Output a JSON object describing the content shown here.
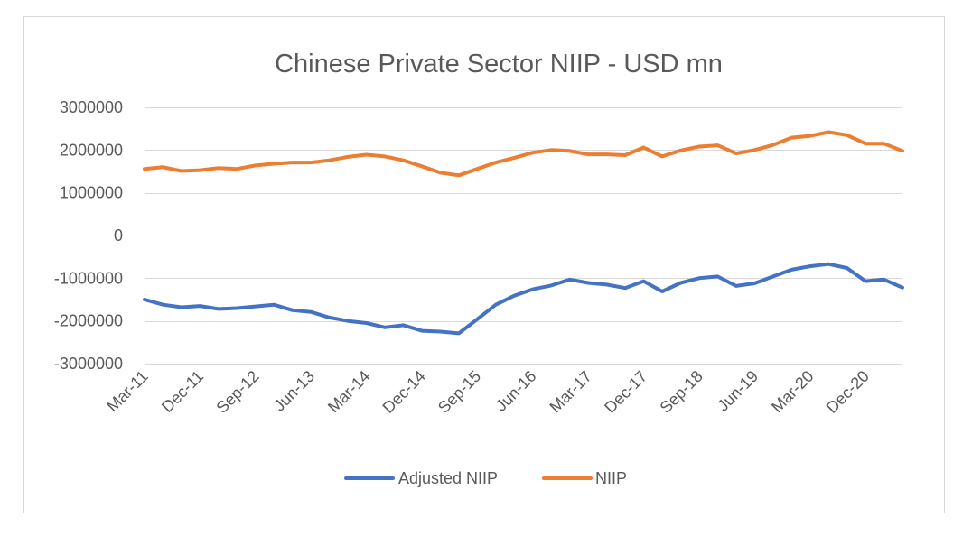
{
  "chart_data": {
    "type": "line",
    "title": "Chinese Private Sector NIIP - USD mn",
    "xlabel": "",
    "ylabel": "",
    "ylim": [
      -3000000,
      3000000
    ],
    "yticks": [
      3000000,
      2000000,
      1000000,
      0,
      -1000000,
      -2000000,
      -3000000
    ],
    "ytick_labels": [
      "3000000",
      "2000000",
      "1000000",
      "0",
      "-1000000",
      "-2000000",
      "-3000000"
    ],
    "grid": true,
    "legend_position": "bottom",
    "x": [
      "Mar-11",
      "Jun-11",
      "Sep-11",
      "Dec-11",
      "Mar-12",
      "Jun-12",
      "Sep-12",
      "Dec-12",
      "Mar-13",
      "Jun-13",
      "Sep-13",
      "Dec-13",
      "Mar-14",
      "Jun-14",
      "Sep-14",
      "Dec-14",
      "Mar-15",
      "Jun-15",
      "Sep-15",
      "Dec-15",
      "Mar-16",
      "Jun-16",
      "Sep-16",
      "Dec-16",
      "Mar-17",
      "Jun-17",
      "Sep-17",
      "Dec-17",
      "Mar-18",
      "Jun-18",
      "Sep-18",
      "Dec-18",
      "Mar-19",
      "Jun-19",
      "Sep-19",
      "Dec-19",
      "Mar-20",
      "Jun-20",
      "Sep-20",
      "Dec-20",
      "Mar-21",
      "Jun-21"
    ],
    "xtick_labels": [
      "Mar-11",
      "Dec-11",
      "Sep-12",
      "Jun-13",
      "Mar-14",
      "Dec-14",
      "Sep-15",
      "Jun-16",
      "Mar-17",
      "Dec-17",
      "Sep-18",
      "Jun-19",
      "Mar-20",
      "Dec-20"
    ],
    "series": [
      {
        "name": "Adjusted NIIP",
        "color": "#4472C4",
        "values": [
          -1500000,
          -1620000,
          -1680000,
          -1650000,
          -1720000,
          -1700000,
          -1660000,
          -1620000,
          -1750000,
          -1790000,
          -1920000,
          -2000000,
          -2050000,
          -2150000,
          -2100000,
          -2230000,
          -2250000,
          -2290000,
          -1960000,
          -1620000,
          -1410000,
          -1260000,
          -1170000,
          -1030000,
          -1110000,
          -1150000,
          -1230000,
          -1070000,
          -1310000,
          -1110000,
          -1000000,
          -960000,
          -1180000,
          -1120000,
          -960000,
          -800000,
          -720000,
          -670000,
          -760000,
          -1070000,
          -1030000,
          -1220000
        ]
      },
      {
        "name": "NIIP",
        "color": "#ED7D31",
        "values": [
          1560000,
          1600000,
          1510000,
          1530000,
          1580000,
          1560000,
          1640000,
          1680000,
          1710000,
          1710000,
          1760000,
          1840000,
          1890000,
          1850000,
          1760000,
          1620000,
          1470000,
          1410000,
          1560000,
          1710000,
          1820000,
          1940000,
          2000000,
          1980000,
          1900000,
          1900000,
          1880000,
          2060000,
          1850000,
          1990000,
          2080000,
          2110000,
          1920000,
          2000000,
          2120000,
          2290000,
          2330000,
          2420000,
          2350000,
          2150000,
          2150000,
          1980000
        ]
      }
    ]
  }
}
